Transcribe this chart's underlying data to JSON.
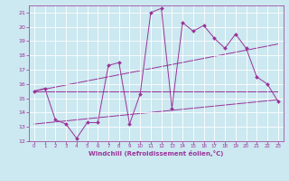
{
  "xlabel": "Windchill (Refroidissement éolien,°C)",
  "ylabel": "",
  "bg_color": "#cce8f0",
  "line_color": "#993399",
  "grid_color": "#ffffff",
  "xlim": [
    -0.5,
    23.5
  ],
  "ylim": [
    12,
    21.5
  ],
  "xticks": [
    0,
    1,
    2,
    3,
    4,
    5,
    6,
    7,
    8,
    9,
    10,
    11,
    12,
    13,
    14,
    15,
    16,
    17,
    18,
    19,
    20,
    21,
    22,
    23
  ],
  "yticks": [
    12,
    13,
    14,
    15,
    16,
    17,
    18,
    19,
    20,
    21
  ],
  "main_series": {
    "x": [
      0,
      1,
      2,
      3,
      4,
      5,
      6,
      7,
      8,
      9,
      10,
      11,
      12,
      13,
      14,
      15,
      16,
      17,
      18,
      19,
      20,
      21,
      22,
      23
    ],
    "y": [
      15.5,
      15.7,
      13.5,
      13.2,
      12.2,
      13.3,
      13.3,
      17.3,
      17.5,
      13.2,
      15.3,
      21.0,
      21.3,
      14.3,
      20.3,
      19.7,
      20.1,
      19.2,
      18.5,
      19.5,
      18.5,
      16.5,
      16.0,
      14.8
    ]
  },
  "trend_lines": [
    {
      "x": [
        0,
        23
      ],
      "y": [
        15.5,
        18.8
      ]
    },
    {
      "x": [
        0,
        23
      ],
      "y": [
        13.2,
        14.9
      ]
    },
    {
      "x": [
        0,
        23
      ],
      "y": [
        15.5,
        15.5
      ]
    }
  ]
}
